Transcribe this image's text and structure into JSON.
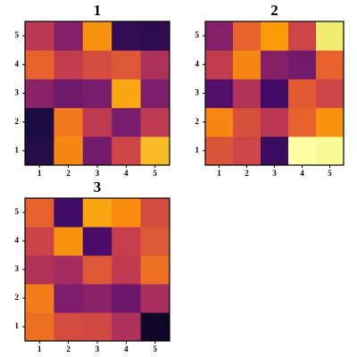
{
  "chart_data": [
    {
      "type": "heatmap",
      "title": "1",
      "colormap": "inferno",
      "clim": [
        0,
        1
      ],
      "xticks": [
        1,
        2,
        3,
        4,
        5
      ],
      "yticks": [
        1,
        2,
        3,
        4,
        5
      ],
      "values": [
        [
          0.12,
          0.66,
          0.29,
          0.5,
          0.76
        ],
        [
          0.1,
          0.63,
          0.46,
          0.3,
          0.46
        ],
        [
          0.34,
          0.28,
          0.3,
          0.72,
          0.31
        ],
        [
          0.58,
          0.47,
          0.52,
          0.55,
          0.42
        ],
        [
          0.45,
          0.33,
          0.68,
          0.15,
          0.14
        ]
      ]
    },
    {
      "type": "heatmap",
      "title": "2",
      "colormap": "inferno",
      "clim": [
        0,
        1
      ],
      "xticks": [
        1,
        2,
        3,
        4,
        5
      ],
      "yticks": [
        1,
        2,
        3,
        4,
        5
      ],
      "values": [
        [
          0.54,
          0.5,
          0.17,
          1.0,
          0.97
        ],
        [
          0.66,
          0.53,
          0.45,
          0.58,
          0.68
        ],
        [
          0.22,
          0.43,
          0.19,
          0.56,
          0.5
        ],
        [
          0.47,
          0.66,
          0.33,
          0.29,
          0.58
        ],
        [
          0.33,
          0.58,
          0.7,
          0.5,
          0.9
        ]
      ]
    },
    {
      "type": "heatmap",
      "title": "3",
      "colormap": "inferno",
      "clim": [
        0,
        1
      ],
      "xticks": [
        1,
        2,
        3,
        4,
        5
      ],
      "yticks": [
        1,
        2,
        3,
        4,
        5
      ],
      "values": [
        [
          0.61,
          0.52,
          0.51,
          0.42,
          0.06
        ],
        [
          0.64,
          0.31,
          0.34,
          0.27,
          0.41
        ],
        [
          0.43,
          0.4,
          0.55,
          0.46,
          0.61
        ],
        [
          0.49,
          0.68,
          0.2,
          0.48,
          0.55
        ],
        [
          0.58,
          0.18,
          0.72,
          0.67,
          0.52
        ]
      ]
    }
  ]
}
